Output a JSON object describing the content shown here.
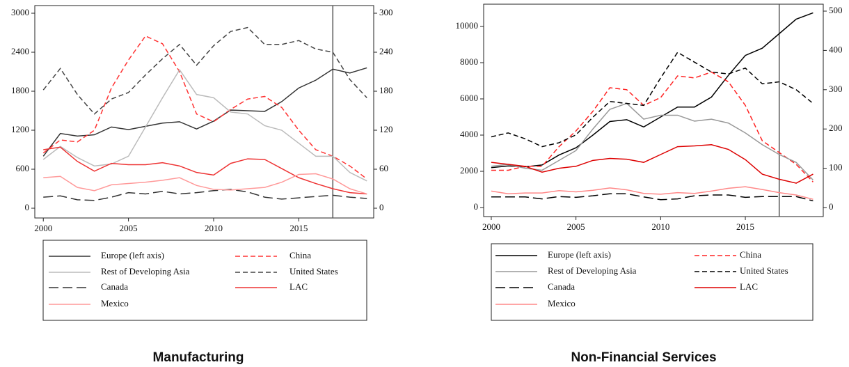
{
  "chart_data": [
    {
      "type": "line",
      "title": "Manufacturing",
      "x": [
        2000,
        2001,
        2002,
        2003,
        2004,
        2005,
        2006,
        2007,
        2008,
        2009,
        2010,
        2011,
        2012,
        2013,
        2014,
        2015,
        2016,
        2017,
        2018,
        2019
      ],
      "xlim": [
        1999.5,
        2019.4
      ],
      "xticks": [
        2000,
        2005,
        2010,
        2015
      ],
      "ylim": [
        -150,
        3118
      ],
      "yticks": [
        0,
        600,
        1200,
        1800,
        2400,
        3000
      ],
      "y2lim": [
        -15,
        311.8
      ],
      "y2ticks": [
        0,
        60,
        120,
        180,
        240,
        300
      ],
      "vline": 2017,
      "series": [
        {
          "name": "Europe (left axis)",
          "color": "#333333",
          "dash": "solid",
          "values": [
            800,
            1150,
            1110,
            1130,
            1250,
            1210,
            1260,
            1310,
            1330,
            1220,
            1340,
            1510,
            1500,
            1490,
            1640,
            1850,
            1970,
            2140,
            2080,
            2160
          ]
        },
        {
          "name": "China",
          "color": "#ff3333",
          "dash": "dashed",
          "axis": "y2",
          "values": [
            85,
            105,
            102,
            120,
            185,
            228,
            265,
            253,
            210,
            145,
            133,
            152,
            168,
            172,
            155,
            120,
            90,
            80,
            65,
            45
          ]
        },
        {
          "name": "Rest of Developing Asia",
          "color": "#bbbbbb",
          "dash": "solid",
          "axis": "y2",
          "values": [
            75,
            95,
            78,
            65,
            68,
            80,
            125,
            170,
            213,
            175,
            170,
            148,
            145,
            127,
            120,
            100,
            80,
            80,
            55,
            42
          ]
        },
        {
          "name": "United States",
          "color": "#444444",
          "dash": "dashed",
          "axis": "y2",
          "values": [
            182,
            215,
            175,
            145,
            168,
            178,
            205,
            230,
            252,
            220,
            250,
            272,
            278,
            252,
            252,
            258,
            245,
            240,
            198,
            170
          ]
        },
        {
          "name": "Canada",
          "color": "#333333",
          "dash": "longdash",
          "axis": "y2",
          "values": [
            17,
            19,
            13,
            12,
            17,
            24,
            22,
            26,
            22,
            24,
            27,
            29,
            25,
            17,
            14,
            16,
            18,
            20,
            17,
            15
          ]
        },
        {
          "name": "LAC",
          "color": "#ee3333",
          "dash": "solid",
          "axis": "y2",
          "values": [
            90,
            94,
            72,
            57,
            69,
            67,
            67,
            70,
            65,
            55,
            51,
            69,
            76,
            75,
            61,
            47,
            38,
            30,
            24,
            22
          ]
        },
        {
          "name": "Mexico",
          "color": "#ff9999",
          "dash": "solid",
          "axis": "y2",
          "values": [
            47,
            49,
            32,
            27,
            36,
            38,
            40,
            43,
            47,
            35,
            29,
            28,
            30,
            32,
            40,
            52,
            53,
            45,
            30,
            22
          ]
        }
      ]
    },
    {
      "type": "line",
      "title": "Non-Financial Services",
      "x": [
        2000,
        2001,
        2002,
        2003,
        2004,
        2005,
        2006,
        2007,
        2008,
        2009,
        2010,
        2011,
        2012,
        2013,
        2014,
        2015,
        2016,
        2017,
        2018,
        2019
      ],
      "xlim": [
        1999.55,
        2019.6
      ],
      "xticks": [
        2000,
        2005,
        2010,
        2015
      ],
      "ylim": [
        -500,
        11230
      ],
      "yticks": [
        0,
        2000,
        4000,
        6000,
        8000,
        10000
      ],
      "y2lim": [
        -23,
        517.7
      ],
      "y2ticks": [
        0,
        100,
        200,
        300,
        400,
        500
      ],
      "vline": 2017,
      "series": [
        {
          "name": "Europe (left axis)",
          "color": "#000000",
          "dash": "solid",
          "values": [
            2200,
            2300,
            2250,
            2350,
            2900,
            3300,
            4000,
            4750,
            4850,
            4450,
            5000,
            5550,
            5550,
            6100,
            7300,
            8400,
            8800,
            9600,
            10400,
            10750
          ]
        },
        {
          "name": "China",
          "color": "#ff2222",
          "dash": "dashed",
          "axis": "y2",
          "values": [
            95,
            95,
            105,
            105,
            155,
            195,
            245,
            305,
            300,
            260,
            280,
            335,
            330,
            345,
            320,
            260,
            170,
            140,
            110,
            65
          ]
        },
        {
          "name": "Rest of Developing Asia",
          "color": "#999999",
          "dash": "solid",
          "axis": "y2",
          "values": [
            105,
            110,
            100,
            95,
            120,
            145,
            200,
            250,
            265,
            225,
            235,
            235,
            220,
            225,
            215,
            190,
            160,
            135,
            115,
            70
          ]
        },
        {
          "name": "United States",
          "color": "#000000",
          "dash": "dashed",
          "axis": "y2",
          "values": [
            180,
            190,
            175,
            155,
            165,
            185,
            230,
            270,
            265,
            260,
            330,
            395,
            370,
            345,
            340,
            355,
            315,
            320,
            300,
            265
          ]
        },
        {
          "name": "Canada",
          "color": "#000000",
          "dash": "longdash",
          "axis": "y2",
          "values": [
            27,
            27,
            27,
            22,
            28,
            26,
            30,
            35,
            35,
            27,
            20,
            22,
            30,
            32,
            32,
            26,
            28,
            28,
            28,
            17
          ]
        },
        {
          "name": "LAC",
          "color": "#dd0000",
          "dash": "solid",
          "axis": "y2",
          "values": [
            115,
            110,
            105,
            90,
            100,
            105,
            120,
            125,
            123,
            115,
            135,
            155,
            157,
            160,
            148,
            122,
            85,
            72,
            62,
            85
          ]
        },
        {
          "name": "Mexico",
          "color": "#ff8888",
          "dash": "solid",
          "axis": "y2",
          "values": [
            42,
            35,
            37,
            37,
            43,
            40,
            44,
            50,
            45,
            36,
            34,
            38,
            36,
            42,
            49,
            53,
            46,
            38,
            32,
            21
          ]
        }
      ]
    }
  ]
}
